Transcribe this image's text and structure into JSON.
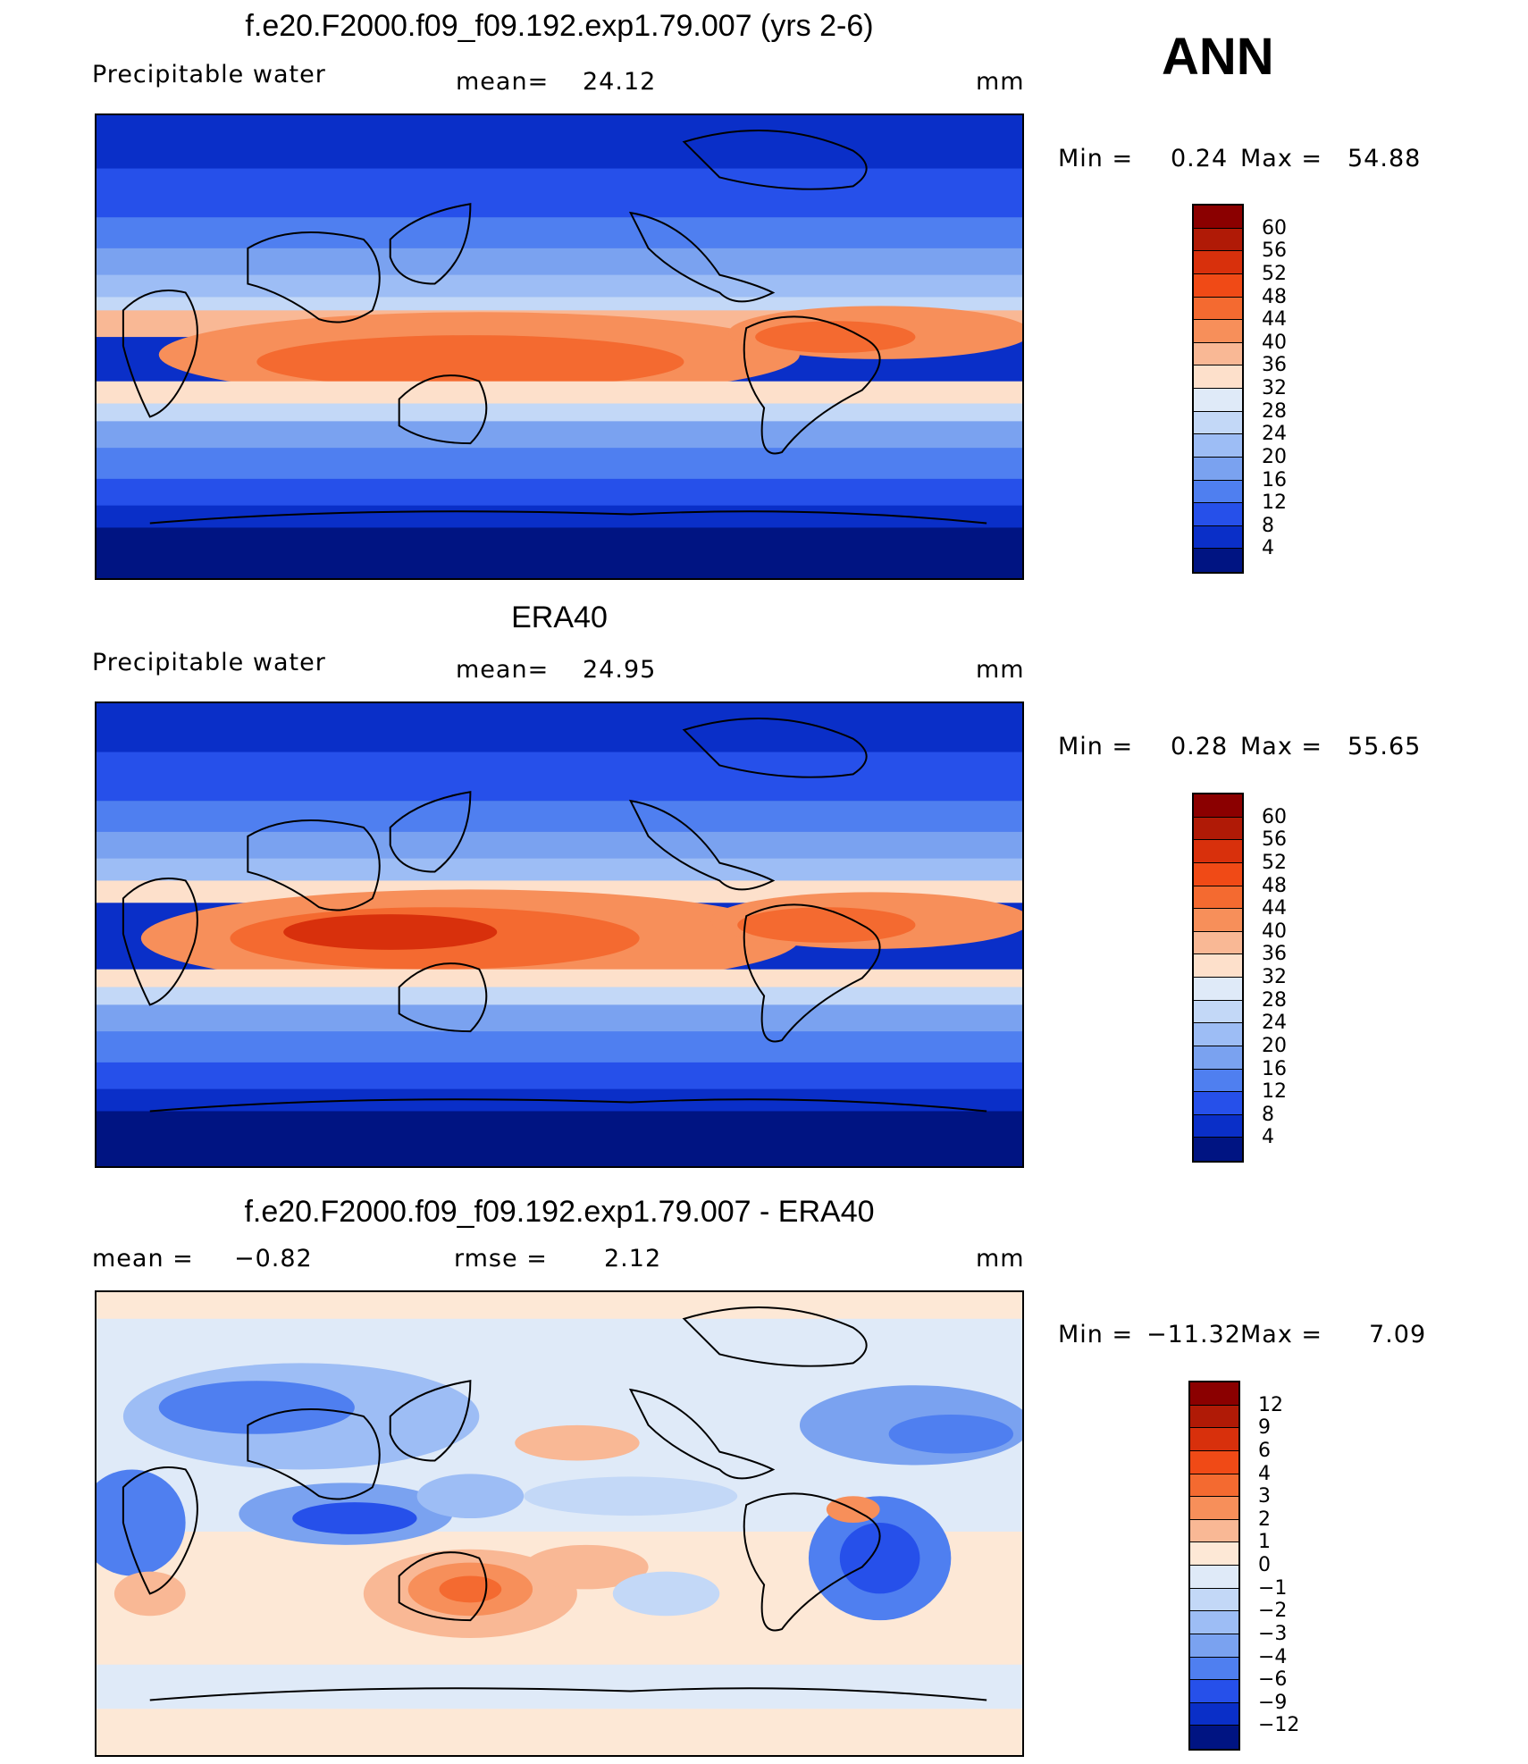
{
  "header": {
    "season": "ANN"
  },
  "panels": [
    {
      "title": "f.e20.F2000.f09_f09.192.exp1.79.007 (yrs 2-6)",
      "variable": "Precipitable water",
      "stat_left": "",
      "mean_label": "mean=",
      "mean_value": "24.12",
      "units": "mm",
      "min_label": "Min  =",
      "min_value": "0.24",
      "max_label": "Max  =",
      "max_value": "54.88",
      "scale": "abs"
    },
    {
      "title": "ERA40",
      "variable": "Precipitable water",
      "mean_label": "mean=",
      "mean_value": "24.95",
      "units": "mm",
      "min_label": "Min  =",
      "min_value": "0.28",
      "max_label": "Max  =",
      "max_value": "55.65",
      "scale": "abs"
    },
    {
      "title": "f.e20.F2000.f09_f09.192.exp1.79.007 - ERA40",
      "variable": "mean  =",
      "variable_value": "−0.82",
      "mean_label": "rmse  =",
      "mean_value": "2.12",
      "units": "mm",
      "min_label": "Min  =",
      "min_value": "−11.32",
      "max_label": "Max  =",
      "max_value": "7.09",
      "scale": "diff"
    }
  ],
  "colorbars": {
    "abs": {
      "labels": [
        "60",
        "56",
        "52",
        "48",
        "44",
        "40",
        "36",
        "32",
        "28",
        "24",
        "20",
        "16",
        "12",
        "8",
        "4"
      ],
      "colors": [
        "#8b0000",
        "#b01a06",
        "#d8300c",
        "#f04a16",
        "#f46a30",
        "#f78f5a",
        "#f9b895",
        "#fde0cb",
        "#dfeaf8",
        "#c3d8f7",
        "#9dbdf5",
        "#7aa2f0",
        "#4f7ff0",
        "#2650ea",
        "#0a2fc8",
        "#001482"
      ]
    },
    "diff": {
      "labels": [
        "12",
        "9",
        "6",
        "4",
        "3",
        "2",
        "1",
        "0",
        "−1",
        "−2",
        "−3",
        "−4",
        "−6",
        "−9",
        "−12"
      ],
      "colors": [
        "#8b0000",
        "#b01a06",
        "#d8300c",
        "#f04a16",
        "#f46a30",
        "#f78f5a",
        "#f9b895",
        "#fde8d6",
        "#dfeaf8",
        "#c3d8f7",
        "#9dbdf5",
        "#7aa2f0",
        "#4f7ff0",
        "#2650ea",
        "#0a2fc8",
        "#001482"
      ]
    }
  }
}
